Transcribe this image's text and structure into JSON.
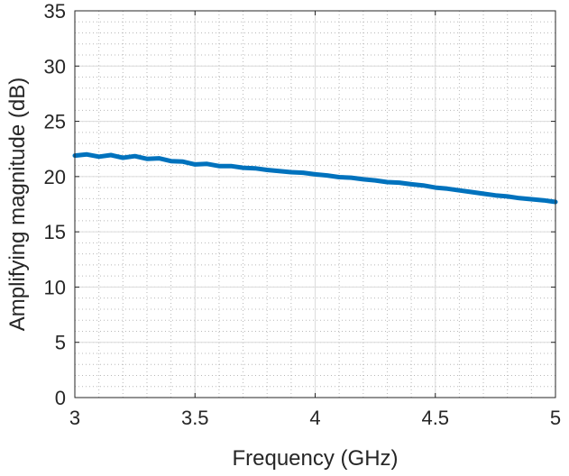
{
  "chart_data": {
    "type": "line",
    "xlabel": "Frequency (GHz)",
    "ylabel": "Amplifying magnitude (dB)",
    "xlim": [
      3,
      5
    ],
    "ylim": [
      0,
      35
    ],
    "xticks": [
      3,
      3.5,
      4,
      4.5,
      5
    ],
    "yticks": [
      0,
      5,
      10,
      15,
      20,
      25,
      30,
      35
    ],
    "xtick_labels": [
      "3",
      "3.5",
      "4",
      "4.5",
      "5"
    ],
    "ytick_labels": [
      "0",
      "5",
      "10",
      "15",
      "20",
      "25",
      "30",
      "35"
    ],
    "grid": true,
    "minor_grid": true,
    "line_color": "#0072BD",
    "series": [
      {
        "x": [
          3.0,
          3.05,
          3.1,
          3.15,
          3.2,
          3.25,
          3.3,
          3.35,
          3.4,
          3.45,
          3.5,
          3.55,
          3.6,
          3.65,
          3.7,
          3.75,
          3.8,
          3.85,
          3.9,
          3.95,
          4.0,
          4.05,
          4.1,
          4.15,
          4.2,
          4.25,
          4.3,
          4.35,
          4.4,
          4.45,
          4.5,
          4.55,
          4.6,
          4.65,
          4.7,
          4.75,
          4.8,
          4.85,
          4.9,
          4.95,
          5.0
        ],
        "y": [
          21.9,
          22.0,
          21.8,
          21.95,
          21.7,
          21.85,
          21.6,
          21.65,
          21.4,
          21.35,
          21.1,
          21.15,
          20.95,
          20.95,
          20.8,
          20.75,
          20.6,
          20.5,
          20.4,
          20.35,
          20.2,
          20.1,
          19.95,
          19.9,
          19.75,
          19.65,
          19.5,
          19.45,
          19.3,
          19.2,
          19.0,
          18.9,
          18.75,
          18.6,
          18.45,
          18.3,
          18.2,
          18.05,
          17.95,
          17.85,
          17.7
        ]
      }
    ]
  }
}
